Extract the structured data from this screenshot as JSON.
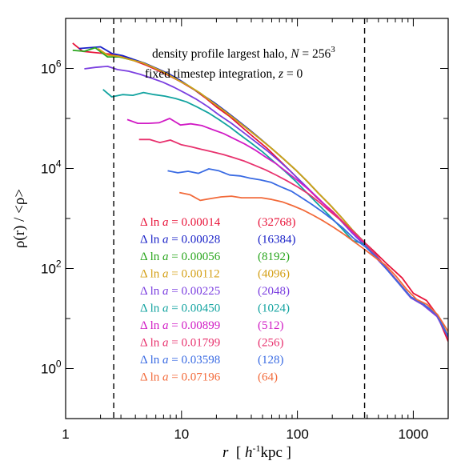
{
  "chart_data": {
    "type": "line",
    "xscale": "log",
    "yscale": "log",
    "xlim": [
      1,
      2000
    ],
    "ylim": [
      0.1,
      10000000
    ],
    "x_ticks": [
      {
        "value": 1,
        "label": "1"
      },
      {
        "value": 10,
        "label": "10"
      },
      {
        "value": 100,
        "label": "100"
      },
      {
        "value": 1000,
        "label": "1000"
      }
    ],
    "y_ticks": [
      {
        "value": 1,
        "base": "10",
        "exp": "0"
      },
      {
        "value": 100,
        "base": "10",
        "exp": "2"
      },
      {
        "value": 10000,
        "base": "10",
        "exp": "4"
      },
      {
        "value": 1000000,
        "base": "10",
        "exp": "6"
      }
    ],
    "xlabel": {
      "var": "r",
      "pre": "  [ ",
      "unit_h": "h",
      "unit_exp": "-1",
      "unit_rest": "kpc ]"
    },
    "ylabel": {
      "text": "ρ(r) / <ρ>"
    },
    "annotations": [
      {
        "pre": "density profile largest halo, ",
        "var": "N",
        "mid": " = 256",
        "sup": "3"
      },
      {
        "pre": "fixed timestep integration, ",
        "var": "z",
        "mid": " = 0",
        "sup": ""
      }
    ],
    "vlines": [
      2.6,
      380
    ],
    "grid": false,
    "legend_position": "bottom-left",
    "series": [
      {
        "delta": "Δ ln a = ",
        "value": "0.00014",
        "steps": "(32768)",
        "color": "#e8143a",
        "x": [
          1.15,
          1.4,
          1.7,
          2.1,
          2.6,
          3.2,
          4,
          5,
          6.2,
          7.8,
          10,
          13,
          16,
          20,
          26,
          33,
          42,
          55,
          70,
          90,
          115,
          150,
          200,
          260,
          340,
          450,
          600,
          800,
          1000,
          1300,
          1600,
          2000
        ],
        "y": [
          3200000,
          2200000,
          2100000,
          2000000,
          1900000,
          1700000,
          1400000,
          1150000,
          920000,
          720000,
          530000,
          370000,
          260000,
          170000,
          110000,
          68000,
          42000,
          25000,
          14500,
          8200,
          4600,
          2500,
          1400,
          760,
          420,
          230,
          120,
          65,
          32,
          23,
          12,
          3.5
        ]
      },
      {
        "delta": "Δ ln a = ",
        "value": "0.00028",
        "steps": "(16384)",
        "color": "#1a22c8",
        "x": [
          1.3,
          1.6,
          2,
          2.5,
          3.1,
          3.9,
          4.9,
          6.1,
          7.7,
          9.6,
          12,
          15,
          19,
          24,
          30,
          38,
          48,
          60,
          76,
          96,
          120,
          150,
          190,
          240,
          300,
          380,
          480,
          600,
          750,
          950,
          1200,
          1600,
          2000
        ],
        "y": [
          2500000,
          2600000,
          2700000,
          2000000,
          1800000,
          1500000,
          1250000,
          1000000,
          790000,
          590000,
          420000,
          300000,
          210000,
          140000,
          94000,
          61000,
          39000,
          25000,
          15500,
          9500,
          5700,
          3300,
          1900,
          1050,
          580,
          330,
          180,
          95,
          52,
          27,
          20,
          12,
          4.5
        ]
      },
      {
        "delta": "Δ ln a = ",
        "value": "0.00056",
        "steps": "(8192)",
        "color": "#2aa61e",
        "x": [
          1.15,
          1.45,
          1.8,
          2.3,
          2.9,
          3.6,
          4.6,
          5.7,
          7.2,
          9,
          11.5,
          14.5,
          18,
          23,
          29,
          37,
          47,
          60,
          76,
          96,
          120,
          150,
          190,
          240,
          300,
          380,
          480,
          600,
          750,
          950,
          1200,
          1600,
          2000
        ],
        "y": [
          2300000,
          2200000,
          2600000,
          1700000,
          1700000,
          1500000,
          1300000,
          1050000,
          820000,
          610000,
          450000,
          320000,
          220000,
          145000,
          96000,
          62000,
          40000,
          25000,
          15500,
          9500,
          5700,
          3300,
          1900,
          1050,
          580,
          330,
          180,
          95,
          52,
          27,
          20,
          12,
          4.5
        ]
      },
      {
        "delta": "Δ ln a = ",
        "value": "0.00112",
        "steps": "(4096)",
        "color": "#d4a017",
        "x": [
          1.9,
          2.3,
          2.9,
          3.6,
          4.6,
          5.7,
          7.2,
          9,
          11.5,
          14.5,
          18,
          23,
          29,
          37,
          47,
          60,
          76,
          96,
          120,
          150,
          190,
          240,
          300,
          380,
          480,
          600,
          750,
          950,
          1200,
          1600,
          2000
        ],
        "y": [
          2500000,
          1850000,
          1750000,
          1500000,
          1300000,
          1050000,
          820000,
          610000,
          450000,
          320000,
          220000,
          145000,
          96000,
          62000,
          40000,
          25000,
          15500,
          9500,
          5700,
          3300,
          1900,
          1050,
          580,
          330,
          180,
          95,
          52,
          27,
          20,
          12,
          4.5
        ]
      },
      {
        "delta": "Δ ln a = ",
        "value": "0.00225",
        "steps": "(2048)",
        "color": "#7b3fe0",
        "x": [
          1.45,
          1.8,
          2.3,
          2.8,
          3.5,
          4.4,
          5.5,
          6.9,
          8.6,
          10.8,
          13.5,
          17,
          21,
          27,
          34,
          43,
          55,
          70,
          88,
          110,
          140,
          180,
          230,
          290,
          370,
          470,
          600,
          750,
          950,
          1200,
          1600,
          2000
        ],
        "y": [
          980000,
          1050000,
          1100000,
          950000,
          880000,
          760000,
          640000,
          530000,
          420000,
          320000,
          240000,
          170000,
          118000,
          80000,
          53000,
          35000,
          22500,
          14000,
          8600,
          5200,
          3000,
          1700,
          970,
          540,
          310,
          170,
          92,
          50,
          26,
          19,
          11,
          4.2
        ]
      },
      {
        "delta": "Δ ln a = ",
        "value": "0.00450",
        "steps": "(1024)",
        "color": "#12a3a0",
        "x": [
          2.1,
          2.5,
          3.1,
          3.8,
          4.7,
          5.8,
          7.2,
          8.9,
          11,
          13.6,
          17,
          21,
          26,
          32,
          40,
          50,
          62,
          78,
          97,
          120,
          150,
          190,
          240,
          300,
          380,
          480,
          600,
          750,
          950,
          1200,
          1600,
          2000
        ],
        "y": [
          380000,
          270000,
          300000,
          290000,
          330000,
          300000,
          280000,
          250000,
          215000,
          170000,
          130000,
          95000,
          68000,
          47000,
          32000,
          21500,
          14000,
          8800,
          5500,
          3300,
          1950,
          1120,
          640,
          360,
          310,
          175,
          94,
          51,
          27,
          20,
          12,
          4.3
        ]
      },
      {
        "delta": "Δ ln a = ",
        "value": "0.00899",
        "steps": "(512)",
        "color": "#d11cc5",
        "x": [
          3.4,
          4.2,
          5.2,
          6.4,
          7.9,
          9.8,
          12,
          15,
          18.5,
          23,
          28,
          35,
          43,
          53,
          66,
          81,
          100,
          125,
          155,
          190,
          240,
          300,
          380,
          480,
          600,
          750,
          950,
          1200,
          1600,
          2000
        ],
        "y": [
          95000,
          80000,
          80000,
          82000,
          100000,
          74000,
          78000,
          72000,
          60000,
          50000,
          40000,
          31000,
          23500,
          17000,
          12300,
          8500,
          5800,
          3800,
          2400,
          1500,
          900,
          530,
          320,
          180,
          95,
          52,
          27,
          20,
          12,
          4.3
        ]
      },
      {
        "delta": "Δ ln a = ",
        "value": "0.01799",
        "steps": "(256)",
        "color": "#e8326e",
        "x": [
          4.3,
          5.3,
          6.5,
          8,
          9.9,
          12.2,
          15,
          18.5,
          23,
          28,
          35,
          43,
          53,
          66,
          81,
          100,
          125,
          155,
          190,
          240,
          300,
          380,
          480,
          600,
          750,
          950,
          1200,
          1600,
          2000
        ],
        "y": [
          38000,
          38000,
          33000,
          37000,
          30000,
          27000,
          24000,
          21500,
          19000,
          16500,
          14000,
          11500,
          9400,
          7300,
          5700,
          4300,
          3100,
          2100,
          1400,
          900,
          560,
          330,
          180,
          95,
          52,
          27,
          20,
          12,
          4.3
        ]
      },
      {
        "delta": "Δ ln a = ",
        "value": "0.03598",
        "steps": "(128)",
        "color": "#3a6be3",
        "x": [
          7.6,
          9.3,
          11.4,
          14,
          17.2,
          21,
          26,
          32,
          39,
          48,
          59,
          72,
          89,
          109,
          134,
          165,
          200,
          250,
          310,
          380,
          480,
          600,
          750,
          950,
          1200,
          1600,
          2000
        ],
        "y": [
          9000,
          8200,
          8800,
          8000,
          9800,
          9000,
          7400,
          7100,
          6400,
          5900,
          5300,
          4300,
          3500,
          2600,
          1900,
          1350,
          960,
          630,
          390,
          280,
          170,
          92,
          51,
          27,
          20,
          12,
          4.3
        ]
      },
      {
        "delta": "Δ ln a = ",
        "value": "0.07196",
        "steps": "(64)",
        "color": "#f26a3a",
        "x": [
          9.6,
          11.8,
          14.5,
          17.8,
          22,
          27,
          33,
          40,
          49,
          60,
          74,
          91,
          112,
          137,
          168,
          206,
          253,
          310,
          380,
          470,
          580,
          710,
          870,
          1070,
          1320,
          1620,
          2000
        ],
        "y": [
          3300,
          3000,
          2300,
          2500,
          2700,
          2800,
          2600,
          2600,
          2600,
          2400,
          2150,
          1800,
          1480,
          1160,
          890,
          660,
          480,
          340,
          240,
          165,
          115,
          70,
          39,
          24,
          19,
          12,
          5.5
        ]
      }
    ]
  }
}
